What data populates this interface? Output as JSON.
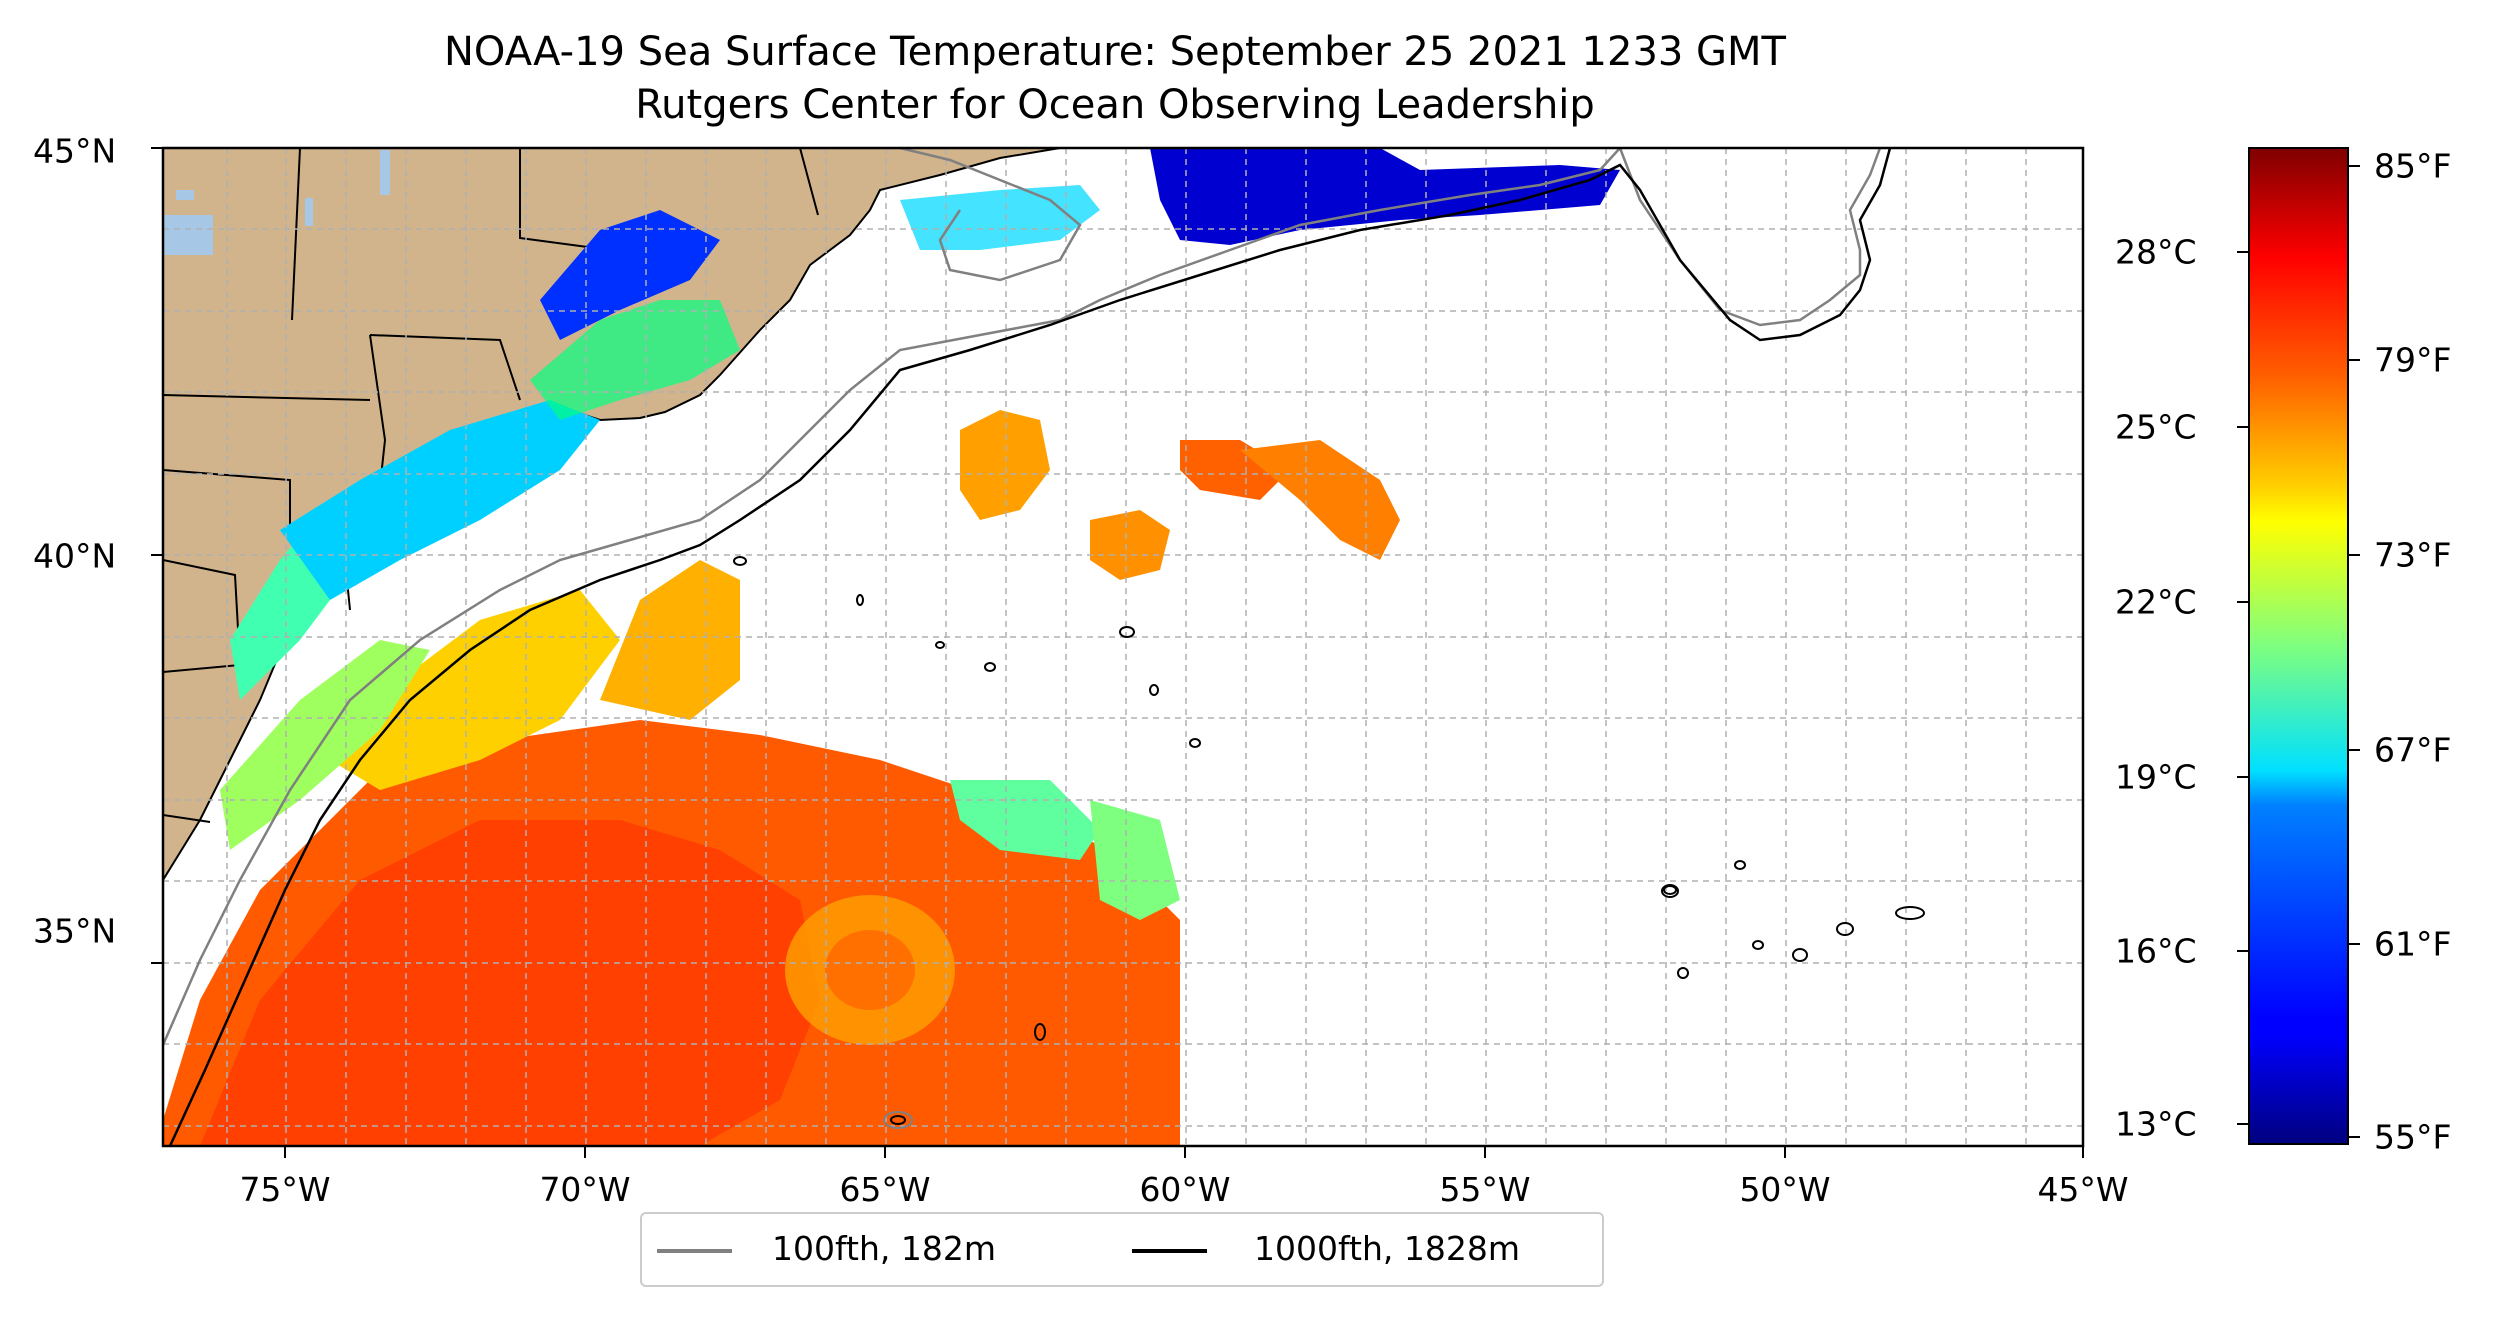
{
  "title": "NOAA-19 Sea Surface Temperature: September 25 2021 1233 GMT",
  "subtitle": "Rutgers Center for Ocean Observing Leadership",
  "lat_ticks": [
    "45°N",
    "40°N",
    "35°N"
  ],
  "lon_ticks": [
    "75°W",
    "70°W",
    "65°W",
    "60°W",
    "55°W",
    "50°W",
    "45°W"
  ],
  "colorbar": {
    "celsius_ticks": [
      "28°C",
      "25°C",
      "22°C",
      "19°C",
      "16°C",
      "13°C"
    ],
    "fahrenheit_ticks": [
      "85°F",
      "79°F",
      "73°F",
      "67°F",
      "61°F",
      "55°F"
    ],
    "min_f": 55,
    "max_f": 86,
    "colormap": "jet"
  },
  "legend": {
    "items": [
      {
        "label": "100fth, 182m",
        "color": "#808080"
      },
      {
        "label": "1000fth, 1828m",
        "color": "#000000"
      }
    ]
  },
  "colors": {
    "land": "#d2b48c",
    "lakes": "#a6c8e6",
    "grid": "#b0b0b0"
  }
}
